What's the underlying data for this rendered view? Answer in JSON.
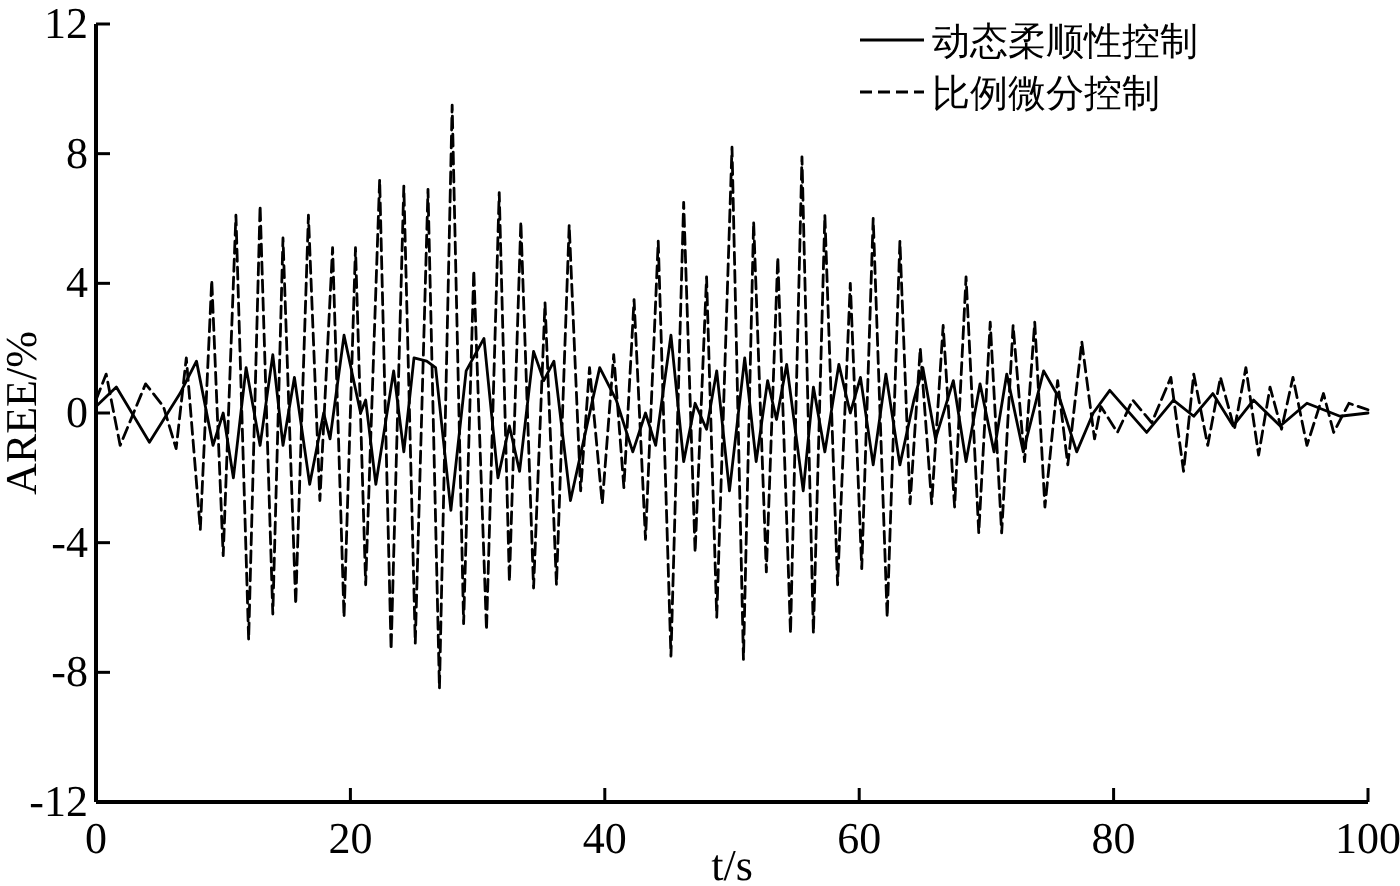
{
  "chart_data": {
    "type": "line",
    "xlabel": "t/s",
    "ylabel": "AREE/%",
    "xlim": [
      0,
      100
    ],
    "xticks": [
      0,
      20,
      40,
      60,
      80,
      100
    ],
    "ylim": [
      -12,
      12
    ],
    "yticks": [
      -12,
      -8,
      -4,
      0,
      4,
      8,
      12
    ],
    "grid": false,
    "legend": "top right",
    "marker": "none",
    "series": [
      {
        "name": "动态柔顺性控制",
        "color": "#000000",
        "line_style": "solid",
        "x": [
          0,
          1.6,
          4.2,
          6.6,
          7.9,
          9.2,
          10.0,
          10.8,
          11.8,
          12.9,
          13.9,
          14.7,
          15.6,
          16.8,
          17.9,
          18.4,
          19.5,
          20.8,
          21.2,
          22.0,
          23.4,
          24.2,
          25.0,
          26.0,
          26.7,
          27.9,
          29.1,
          30.5,
          31.6,
          32.5,
          33.3,
          34.4,
          35.2,
          36.0,
          37.3,
          39.6,
          40.9,
          42.2,
          43.2,
          44.0,
          45.2,
          46.2,
          47.1,
          48.0,
          48.8,
          49.8,
          51.0,
          51.9,
          52.8,
          53.5,
          54.3,
          55.6,
          56.4,
          57.3,
          58.4,
          59.3,
          60.1,
          61.1,
          62.1,
          63.2,
          64.3,
          65.0,
          66.0,
          67.4,
          68.4,
          69.5,
          70.6,
          71.6,
          72.9,
          74.5,
          75.8,
          77.1,
          78.4,
          79.7,
          82.6,
          84.7,
          86.3,
          87.8,
          89.4,
          91.0,
          93.1,
          95.2,
          97.8,
          100
        ],
        "values": [
          0.2,
          0.8,
          -0.9,
          0.6,
          1.6,
          -1.0,
          0,
          -2.0,
          1.4,
          -1.0,
          1.8,
          -1.0,
          1.1,
          -2.2,
          0,
          -0.8,
          2.4,
          0,
          0.4,
          -2.2,
          1.3,
          -1.2,
          1.7,
          1.6,
          1.4,
          -3.0,
          1.3,
          2.3,
          -2.0,
          -0.4,
          -1.8,
          1.9,
          1.0,
          1.6,
          -2.7,
          1.4,
          0.4,
          -1.2,
          0,
          -1.0,
          2.4,
          -1.5,
          0.3,
          -0.5,
          1.3,
          -2.4,
          1.7,
          -1.5,
          1.0,
          -0.2,
          1.5,
          -2.4,
          0.8,
          -1.2,
          1.5,
          0,
          1.1,
          -1.6,
          1.2,
          -1.6,
          0.4,
          1.4,
          -0.8,
          1.0,
          -1.5,
          0.9,
          -1.2,
          1.2,
          -1.2,
          1.3,
          0.4,
          -1.2,
          0,
          0.7,
          -0.6,
          0.4,
          -0.1,
          0.6,
          -0.4,
          0.4,
          -0.4,
          0.3,
          -0.1,
          0
        ]
      },
      {
        "name": "比例微分控制",
        "color": "#000000",
        "line_style": "dashed",
        "x": [
          0,
          0.8,
          1.9,
          3.9,
          5.3,
          6.3,
          7.1,
          8.2,
          9.1,
          10.0,
          11.0,
          12.0,
          12.9,
          13.9,
          14.7,
          15.7,
          16.7,
          17.6,
          18.6,
          19.5,
          20.4,
          21.2,
          22.3,
          23.2,
          24.2,
          25.1,
          26.1,
          27.0,
          28.0,
          28.9,
          29.7,
          30.7,
          31.7,
          32.5,
          33.4,
          34.4,
          35.3,
          36.2,
          37.2,
          38.1,
          38.8,
          39.8,
          40.7,
          41.5,
          42.3,
          43.2,
          44.2,
          45.2,
          46.2,
          47.1,
          48.0,
          48.8,
          50.0,
          50.9,
          51.7,
          52.7,
          53.6,
          54.6,
          55.5,
          56.4,
          57.3,
          58.3,
          59.3,
          60.2,
          61.1,
          62.2,
          63.2,
          64.0,
          64.8,
          65.7,
          66.6,
          67.5,
          68.4,
          69.4,
          70.3,
          71.2,
          72.1,
          73.0,
          73.8,
          74.6,
          75.6,
          76.4,
          77.5,
          78.5,
          79.0,
          80.3,
          81.5,
          83.0,
          84.5,
          85.5,
          86.3,
          87.4,
          88.4,
          89.5,
          90.4,
          91.4,
          92.3,
          93.2,
          94.1,
          95.2,
          96.5,
          97.3,
          98.5,
          100
        ],
        "values": [
          0.4,
          1.2,
          -1.0,
          0.9,
          0.2,
          -1.1,
          1.7,
          -3.6,
          4.1,
          -4.4,
          6.1,
          -7.0,
          6.4,
          -6.2,
          5.4,
          -5.9,
          6.1,
          -2.7,
          5.1,
          -6.3,
          5.1,
          -5.3,
          7.2,
          -7.3,
          7.0,
          -7.1,
          6.9,
          -8.5,
          9.5,
          -6.5,
          4.4,
          -6.7,
          6.8,
          -5.2,
          5.9,
          -5.4,
          3.4,
          -5.3,
          5.8,
          -2.4,
          1.4,
          -2.8,
          1.8,
          -2.3,
          3.5,
          -3.9,
          5.3,
          -7.5,
          6.5,
          -4.3,
          4.2,
          -6.3,
          8.2,
          -7.6,
          5.9,
          -4.9,
          4.8,
          -6.8,
          7.9,
          -6.8,
          6.1,
          -5.3,
          4.0,
          -4.8,
          6.0,
          -6.3,
          5.3,
          -2.8,
          2.0,
          -2.8,
          2.7,
          -2.9,
          4.2,
          -3.7,
          2.8,
          -3.7,
          2.7,
          -1.5,
          2.8,
          -2.9,
          1.0,
          -1.6,
          2.2,
          -0.8,
          0.2,
          -0.6,
          0.4,
          -0.3,
          1.1,
          -1.8,
          1.2,
          -1.0,
          1.1,
          -0.5,
          1.4,
          -1.3,
          0.8,
          -0.5,
          1.1,
          -1.0,
          0.6,
          -0.6,
          0.3,
          0.1
        ]
      }
    ]
  }
}
